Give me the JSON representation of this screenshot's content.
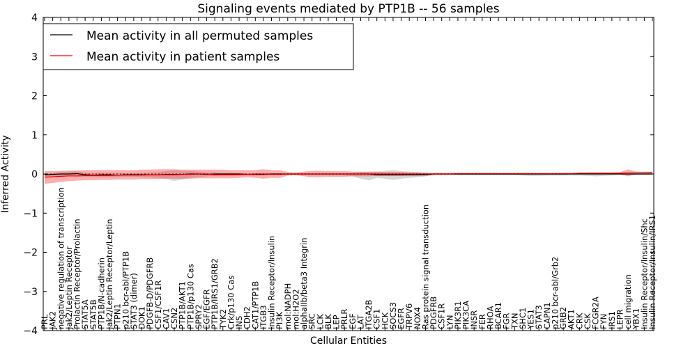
{
  "chart_data": {
    "type": "line",
    "title": "Signaling events mediated by PTP1B -- 56 samples",
    "xlabel": "Cellular Entities",
    "ylabel": "Inferred Activity",
    "ylim": [
      -4,
      4
    ],
    "yticks": [
      -4,
      -3,
      -2,
      -1,
      0,
      1,
      2,
      3,
      4
    ],
    "ytick_labels": [
      "−4",
      "−3",
      "−2",
      "−1",
      "0",
      "1",
      "2",
      "3",
      "4"
    ],
    "grid": false,
    "legend": {
      "location": "top-left",
      "entries": [
        {
          "label": "Mean activity in all permuted samples",
          "color": "#000000"
        },
        {
          "label": "Mean activity in patient samples",
          "color": "#ff0000"
        }
      ]
    },
    "categories": [
      "PRL",
      "JAK2",
      "negative regulation of transcription",
      "Jak2/Leptin Receptor",
      "Prolactin Receptor/Prolactin",
      "STAT5A",
      "STAT5B",
      "PTP1B/N-cadherin",
      "Jak2/Leptin Receptor/Leptin",
      "PTPN1",
      "p210 bcr-abl/PTP1B",
      "STAT3 (dimer)",
      "DOK1",
      "PDGFB-D/PDGFRB",
      "CSF1/CSF1R",
      "CAV1",
      "CSN2",
      "PTP1B/AKT1",
      "PTP1B/p130 Cas",
      "SPRY2",
      "EGF/EGFR",
      "PTP1B/IRS1/GRB2",
      "TYK2",
      "Crk/p130 Cas",
      "INS",
      "CDH2",
      "CAT1/PTP1B",
      "ITGB3",
      "Insulin Receptor/Insulin",
      "PI3K",
      "mol:NADPH",
      "mol:H2O2",
      "alphaIIb/beta3 Integrin",
      "SRC",
      "LCK",
      "BLK",
      "LEP",
      "PRLR",
      "EGF",
      "LAT",
      "ITGA2B",
      "CSF1",
      "HCK",
      "SOCS3",
      "EGFR",
      "TRPV6",
      "NOX4",
      "Ras protein signal transduction",
      "PDGFRB",
      "CSF1R",
      "LYN",
      "PIK3R1",
      "PIK3CA",
      "INSR",
      "FER",
      "RHOA",
      "BCAR1",
      "FGR",
      "TXN",
      "SHC1",
      "YES1",
      "STAT3",
      "CAPN1",
      "p210 bcr-abl/Grb2",
      "GRB2",
      "AKT1",
      "CRK",
      "CSK",
      "FCGR2A",
      "FYN",
      "IRS1",
      "LEPR",
      "cell migration",
      "YBX1",
      "Insulin Receptor/Insulin/Shc",
      "Insulin Receptor/Insulin/IRS1"
    ],
    "series": [
      {
        "name": "Mean activity in all permuted samples",
        "color": "#000000",
        "values": [
          -0.02,
          -0.01,
          0.0,
          0.0,
          0.01,
          -0.02,
          -0.03,
          -0.02,
          -0.02,
          -0.03,
          -0.02,
          -0.02,
          -0.02,
          -0.02,
          -0.02,
          -0.01,
          -0.01,
          -0.01,
          0.0,
          0.0,
          -0.01,
          0.0,
          0.0,
          0.0,
          0.0,
          -0.01,
          -0.01,
          -0.01,
          0.0,
          0.0,
          0.0,
          0.0,
          0.0,
          0.0,
          0.0,
          0.0,
          0.0,
          0.0,
          0.0,
          0.0,
          0.0,
          -0.02,
          -0.02,
          -0.02,
          -0.02,
          -0.02,
          -0.02,
          -0.02,
          0.0,
          0.0,
          0.0,
          0.0,
          0.0,
          0.0,
          0.0,
          0.0,
          0.0,
          0.0,
          0.0,
          0.0,
          0.0,
          0.0,
          0.0,
          0.0,
          0.0,
          0.0,
          0.0,
          0.0,
          0.0,
          0.0,
          0.0,
          0.0,
          0.0,
          0.0,
          0.0,
          0.0
        ],
        "upper": [
          0.02,
          0.03,
          0.05,
          0.06,
          0.07,
          0.03,
          0.02,
          0.03,
          0.03,
          0.02,
          0.03,
          0.03,
          0.03,
          0.04,
          0.05,
          0.07,
          0.1,
          0.08,
          0.08,
          0.06,
          0.04,
          0.04,
          0.03,
          0.03,
          0.02,
          0.02,
          0.02,
          0.02,
          0.02,
          0.02,
          0.02,
          0.02,
          0.02,
          0.02,
          0.02,
          0.02,
          0.02,
          0.02,
          0.03,
          0.05,
          0.05,
          0.06,
          0.08,
          0.1,
          0.07,
          0.06,
          0.05,
          0.04,
          0.02,
          0.02,
          0.01,
          0.01,
          0.01,
          0.01,
          0.01,
          0.01,
          0.01,
          0.01,
          0.01,
          0.01,
          0.01,
          0.01,
          0.01,
          0.01,
          0.01,
          0.01,
          0.01,
          0.01,
          0.01,
          0.01,
          0.01,
          0.01,
          0.01,
          0.01,
          0.01,
          0.01
        ],
        "lower": [
          -0.06,
          -0.06,
          -0.06,
          -0.06,
          -0.07,
          -0.07,
          -0.08,
          -0.08,
          -0.08,
          -0.08,
          -0.07,
          -0.07,
          -0.08,
          -0.09,
          -0.1,
          -0.12,
          -0.18,
          -0.14,
          -0.1,
          -0.08,
          -0.06,
          -0.05,
          -0.04,
          -0.04,
          -0.03,
          -0.04,
          -0.04,
          -0.04,
          -0.03,
          -0.03,
          -0.03,
          -0.03,
          -0.03,
          -0.03,
          -0.03,
          -0.03,
          -0.03,
          -0.04,
          -0.06,
          -0.12,
          -0.16,
          -0.1,
          -0.12,
          -0.15,
          -0.12,
          -0.1,
          -0.08,
          -0.06,
          -0.04,
          -0.03,
          -0.03,
          -0.03,
          -0.03,
          -0.03,
          -0.03,
          -0.03,
          -0.03,
          -0.03,
          -0.03,
          -0.04,
          -0.05,
          -0.05,
          -0.04,
          -0.04,
          -0.04,
          -0.04,
          -0.04,
          -0.05,
          -0.06,
          -0.05,
          -0.04,
          -0.03,
          -0.03,
          -0.03,
          -0.03,
          -0.03
        ]
      },
      {
        "name": "Mean activity in patient samples",
        "color": "#ff0000",
        "values": [
          -0.08,
          -0.07,
          -0.06,
          -0.05,
          -0.05,
          -0.04,
          -0.04,
          -0.04,
          -0.04,
          -0.03,
          -0.03,
          -0.03,
          -0.03,
          -0.02,
          -0.02,
          -0.02,
          -0.02,
          -0.01,
          -0.01,
          0.0,
          0.0,
          -0.02,
          -0.02,
          -0.02,
          -0.02,
          -0.01,
          0.0,
          0.0,
          -0.01,
          -0.01,
          0.0,
          0.0,
          0.0,
          0.0,
          0.0,
          0.0,
          0.0,
          0.0,
          0.0,
          0.0,
          0.0,
          0.0,
          0.0,
          0.0,
          0.0,
          0.0,
          0.0,
          0.0,
          0.0,
          0.0,
          0.0,
          0.01,
          0.01,
          0.01,
          0.01,
          0.01,
          0.01,
          0.01,
          0.01,
          0.01,
          0.01,
          0.01,
          0.01,
          0.01,
          0.01,
          0.01,
          0.02,
          0.02,
          0.02,
          0.02,
          0.02,
          0.02,
          0.03,
          0.03,
          0.03,
          0.04
        ],
        "upper": [
          0.07,
          0.07,
          0.08,
          0.09,
          0.09,
          0.1,
          0.1,
          0.1,
          0.1,
          0.1,
          0.1,
          0.1,
          0.11,
          0.11,
          0.12,
          0.12,
          0.12,
          0.11,
          0.11,
          0.11,
          0.11,
          0.11,
          0.11,
          0.1,
          0.1,
          0.1,
          0.1,
          0.12,
          0.1,
          0.1,
          0.05,
          0.04,
          0.06,
          0.08,
          0.08,
          0.07,
          0.07,
          0.07,
          0.06,
          0.06,
          0.06,
          0.06,
          0.05,
          0.05,
          0.05,
          0.04,
          0.04,
          0.03,
          0.03,
          0.03,
          0.03,
          0.03,
          0.03,
          0.03,
          0.03,
          0.03,
          0.03,
          0.03,
          0.03,
          0.03,
          0.03,
          0.03,
          0.03,
          0.03,
          0.03,
          0.03,
          0.03,
          0.04,
          0.04,
          0.04,
          0.04,
          0.05,
          0.12,
          0.06,
          0.06,
          0.06
        ],
        "lower": [
          -0.25,
          -0.23,
          -0.2,
          -0.18,
          -0.17,
          -0.16,
          -0.16,
          -0.15,
          -0.15,
          -0.14,
          -0.14,
          -0.14,
          -0.13,
          -0.13,
          -0.13,
          -0.12,
          -0.12,
          -0.12,
          -0.12,
          -0.11,
          -0.11,
          -0.11,
          -0.11,
          -0.11,
          -0.1,
          -0.08,
          -0.1,
          -0.12,
          -0.1,
          -0.1,
          -0.04,
          -0.03,
          -0.06,
          -0.08,
          -0.08,
          -0.07,
          -0.07,
          -0.07,
          -0.06,
          -0.06,
          -0.06,
          -0.05,
          -0.05,
          -0.05,
          -0.05,
          -0.04,
          -0.04,
          -0.03,
          -0.02,
          -0.02,
          -0.02,
          -0.02,
          -0.02,
          -0.02,
          -0.02,
          -0.02,
          -0.02,
          -0.02,
          -0.02,
          -0.02,
          -0.02,
          -0.02,
          -0.02,
          -0.02,
          -0.02,
          -0.01,
          -0.01,
          -0.01,
          -0.01,
          -0.01,
          -0.01,
          -0.01,
          -0.06,
          0.0,
          0.0,
          0.0
        ]
      }
    ]
  }
}
